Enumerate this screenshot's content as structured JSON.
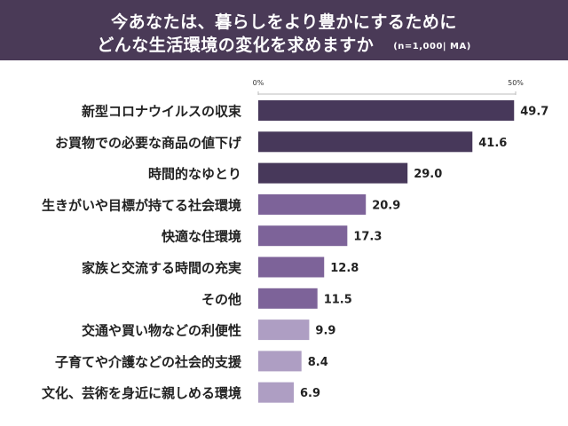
{
  "header": {
    "title_line1": "今あなたは、暮らしをより豊かにするために",
    "title_line2": "どんな生活環境の変化を求めますか",
    "note": "(n=1,000| MA)"
  },
  "chart_data": {
    "type": "bar",
    "orientation": "horizontal",
    "title": "今あなたは、暮らしをより豊かにするために どんな生活環境の変化を求めますか",
    "categories": [
      "新型コロナウイルスの収束",
      "お買物での必要な商品の値下げ",
      "時間的なゆとり",
      "生きがいや目標が持てる社会環境",
      "快適な住環境",
      "家族と交流する時間の充実",
      "その他",
      "交通や買い物などの利便性",
      "子育てや介護などの社会的支援",
      "文化、芸術を身近に親しめる環境"
    ],
    "values": [
      49.7,
      41.6,
      29.0,
      20.9,
      17.3,
      12.8,
      11.5,
      9.9,
      8.4,
      6.9
    ],
    "value_labels": [
      "49.7",
      "41.6",
      "29.0",
      "20.9",
      "17.3",
      "12.8",
      "11.5",
      "9.9",
      "8.4",
      "6.9"
    ],
    "xlim": [
      0,
      50
    ],
    "tick_labels": [
      "0%",
      "50%"
    ],
    "grid": false,
    "bar_colors": [
      "#47385a",
      "#47385a",
      "#47385a",
      "#7d6399",
      "#7d6399",
      "#7d6399",
      "#7d6399",
      "#ae9ec3",
      "#ae9ec3",
      "#ae9ec3"
    ]
  }
}
